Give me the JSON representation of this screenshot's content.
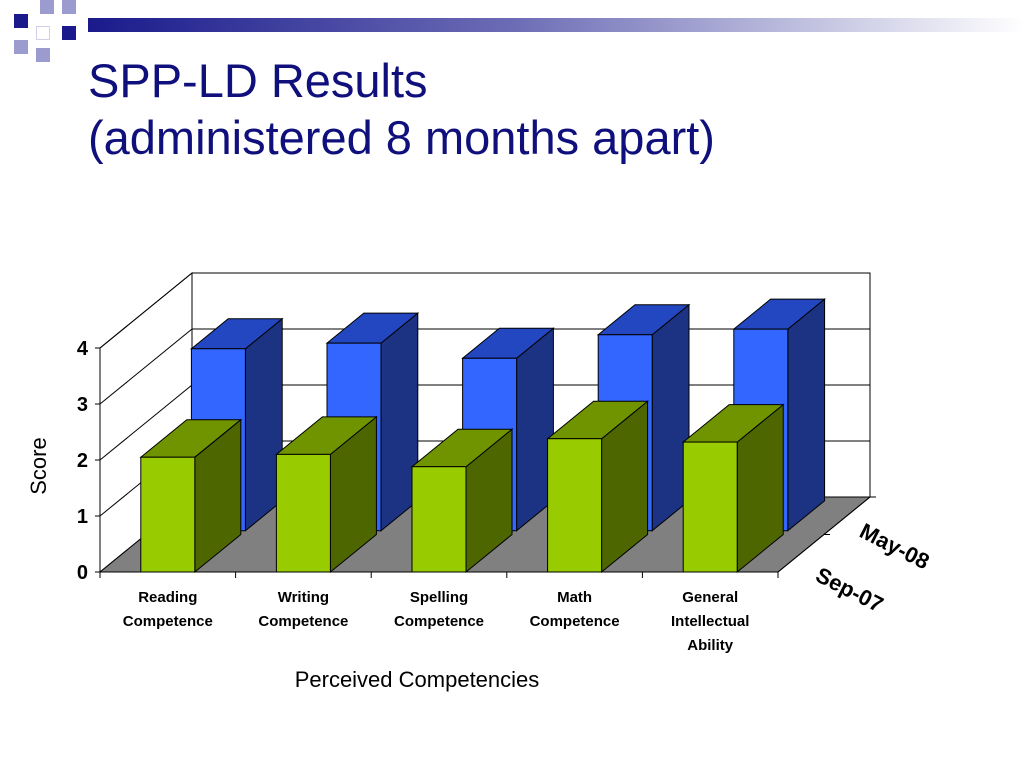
{
  "slide": {
    "title_line1": "SPP-LD Results",
    "title_line2": "(administered 8 months apart)"
  },
  "colors": {
    "title": "#10107d",
    "deco_dark": "#1a1a8c",
    "deco_light": "#9b9bd0",
    "sep_front": "#99cc00",
    "sep_side": "#4e6600",
    "sep_top": "#6f9400",
    "may_front": "#3366ff",
    "may_side": "#1c3383",
    "may_top": "#2347c0",
    "floor": "#808080",
    "grid": "#000000"
  },
  "chart_data": {
    "type": "bar",
    "title": "",
    "xlabel": "Perceived Competencies",
    "ylabel": "Score",
    "ylim": [
      0,
      4
    ],
    "yticks": [
      "0",
      "1",
      "2",
      "3",
      "4"
    ],
    "categories": [
      [
        "Reading",
        "Competence"
      ],
      [
        "Writing",
        "Competence"
      ],
      [
        "Spelling",
        "Competence"
      ],
      [
        "Math",
        "Competence"
      ],
      [
        "General",
        "Intellectual",
        "Ability"
      ]
    ],
    "series": [
      {
        "name": "Sep-07",
        "values": [
          2.05,
          2.1,
          1.88,
          2.38,
          2.32
        ]
      },
      {
        "name": "May-08",
        "values": [
          3.25,
          3.35,
          3.08,
          3.5,
          3.6
        ]
      }
    ],
    "grid": true
  }
}
